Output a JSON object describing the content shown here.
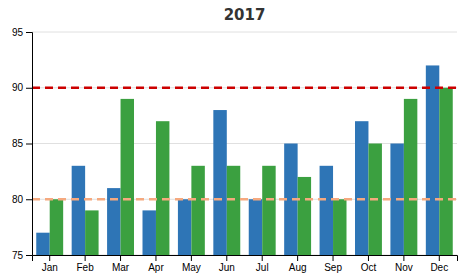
{
  "chart_data": {
    "type": "bar",
    "title": "2017",
    "categories": [
      "Jan",
      "Feb",
      "Mar",
      "Apr",
      "May",
      "Jun",
      "Jul",
      "Aug",
      "Sep",
      "Oct",
      "Nov",
      "Dec"
    ],
    "series": [
      {
        "color": "#2E75B6",
        "values": [
          77,
          83,
          81,
          79,
          80,
          88,
          80,
          85,
          83,
          87,
          85,
          92
        ]
      },
      {
        "color": "#3BA040",
        "values": [
          80,
          79,
          89,
          87,
          83,
          83,
          83,
          82,
          80,
          85,
          89,
          90
        ]
      }
    ],
    "reference_lines": [
      {
        "value": 90,
        "color": "#CC0000"
      },
      {
        "value": 80,
        "color": "#F5A97F"
      }
    ],
    "ylim": [
      75,
      95
    ],
    "yticks": [
      75,
      80,
      85,
      90,
      95
    ],
    "grid": true
  }
}
